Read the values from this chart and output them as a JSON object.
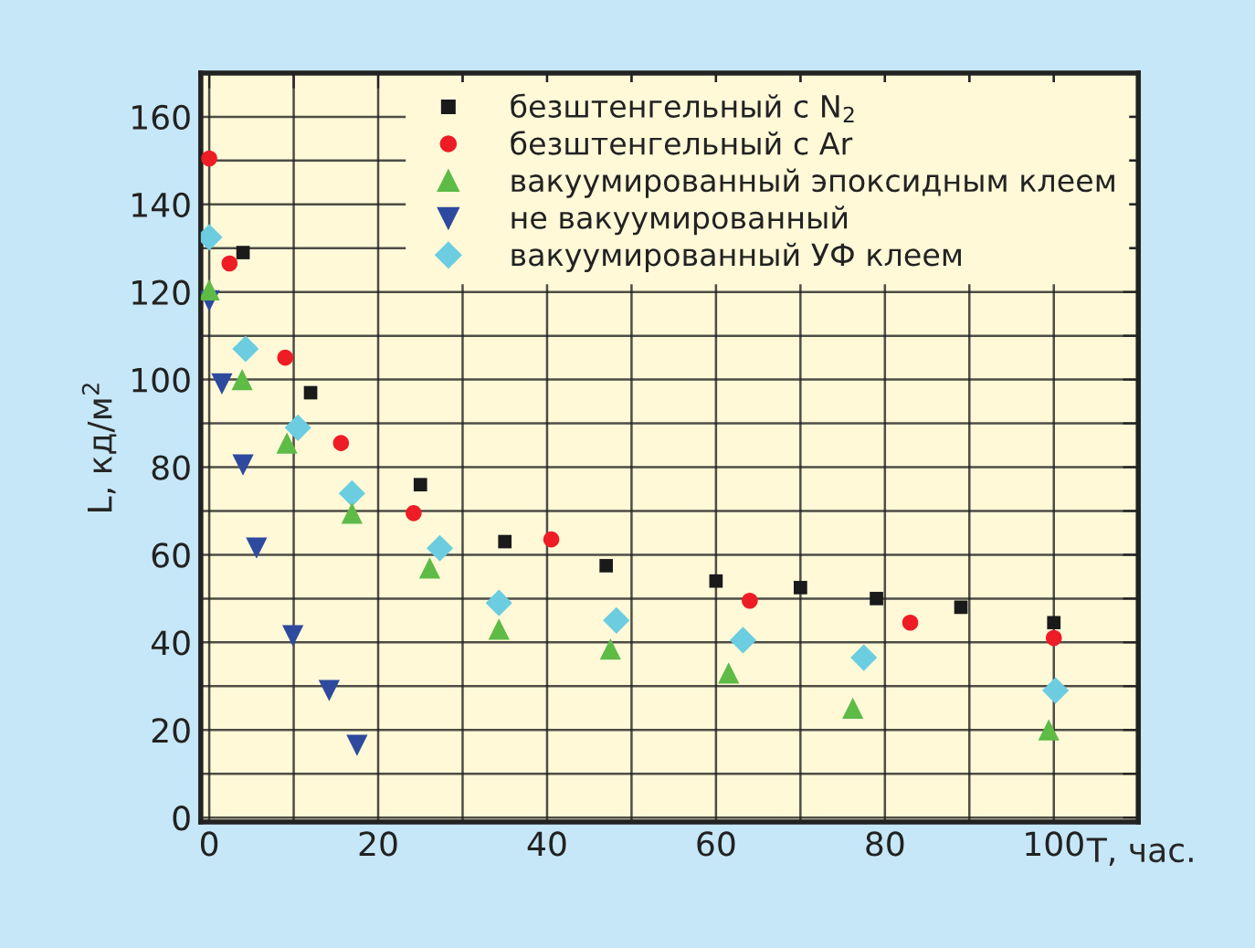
{
  "chart_data": {
    "type": "scatter",
    "xlabel": "T, час.",
    "ylabel": "L, кд/м$^{2}$",
    "xlim": [
      -1,
      110
    ],
    "ylim": [
      -1,
      170
    ],
    "xticks": [
      0,
      {
        "value": 10,
        "label": null
      },
      20,
      {
        "value": 30,
        "label": null
      },
      40,
      {
        "value": 50,
        "label": null
      },
      60,
      {
        "value": 70,
        "label": null
      },
      80,
      {
        "value": 90,
        "label": null
      },
      100,
      {
        "value": 110,
        "label": null
      }
    ],
    "yticks": [
      0,
      {
        "value": 10,
        "label": null
      },
      20,
      {
        "value": 30,
        "label": null
      },
      40,
      {
        "value": 50,
        "label": null
      },
      60,
      {
        "value": 70,
        "label": null
      },
      80,
      {
        "value": 90,
        "label": null
      },
      100,
      {
        "value": 110,
        "label": null
      },
      120,
      {
        "value": 130,
        "label": null
      },
      140,
      {
        "value": 150,
        "label": null
      },
      160
    ],
    "grid": true,
    "legend": "top right",
    "series": [
      {
        "name": "безштенгельный с N$_{2}$",
        "color": "#1a1a1a",
        "marker": "square",
        "x": [
          4,
          12,
          25,
          35,
          47,
          60,
          70,
          79,
          89,
          100
        ],
        "values": [
          129,
          97,
          76,
          63,
          57.5,
          54,
          52.5,
          50,
          48,
          44.5
        ]
      },
      {
        "name": "безштенгельный с Ar",
        "color": "#ee1c25",
        "marker": "circle",
        "x": [
          0,
          2.4,
          9,
          15.6,
          24.2,
          40.5,
          64,
          83,
          100
        ],
        "values": [
          150.5,
          126.5,
          105,
          85.5,
          69.5,
          63.5,
          49.5,
          44.5,
          41
        ]
      },
      {
        "name": "вакуумированный эпоксидным клеем",
        "color": "#5dbb46",
        "marker": "triangle",
        "x": [
          0,
          3.9,
          9.2,
          16.9,
          26.1,
          34.3,
          47.5,
          61.5,
          76.2,
          99.4
        ],
        "values": [
          120.5,
          100,
          85.5,
          69.5,
          57,
          43,
          38.5,
          33,
          25,
          20
        ]
      },
      {
        "name": "не вакуумированный",
        "color": "#2e4a9e",
        "marker": "triangle_down",
        "x": [
          0,
          1.5,
          4,
          5.6,
          9.9,
          14.2,
          17.5
        ],
        "values": [
          118,
          99,
          80.5,
          61.5,
          41.5,
          29,
          16.5
        ]
      },
      {
        "name": "вакуумированный УФ клеем",
        "color": "#6ccde0",
        "marker": "diamond",
        "x": [
          0,
          4.3,
          10.5,
          16.9,
          27.3,
          34.3,
          48.2,
          63.2,
          77.5,
          100.2
        ],
        "values": [
          132.5,
          107,
          89,
          74,
          61.5,
          49,
          45,
          40.5,
          36.5,
          29
        ]
      }
    ]
  }
}
